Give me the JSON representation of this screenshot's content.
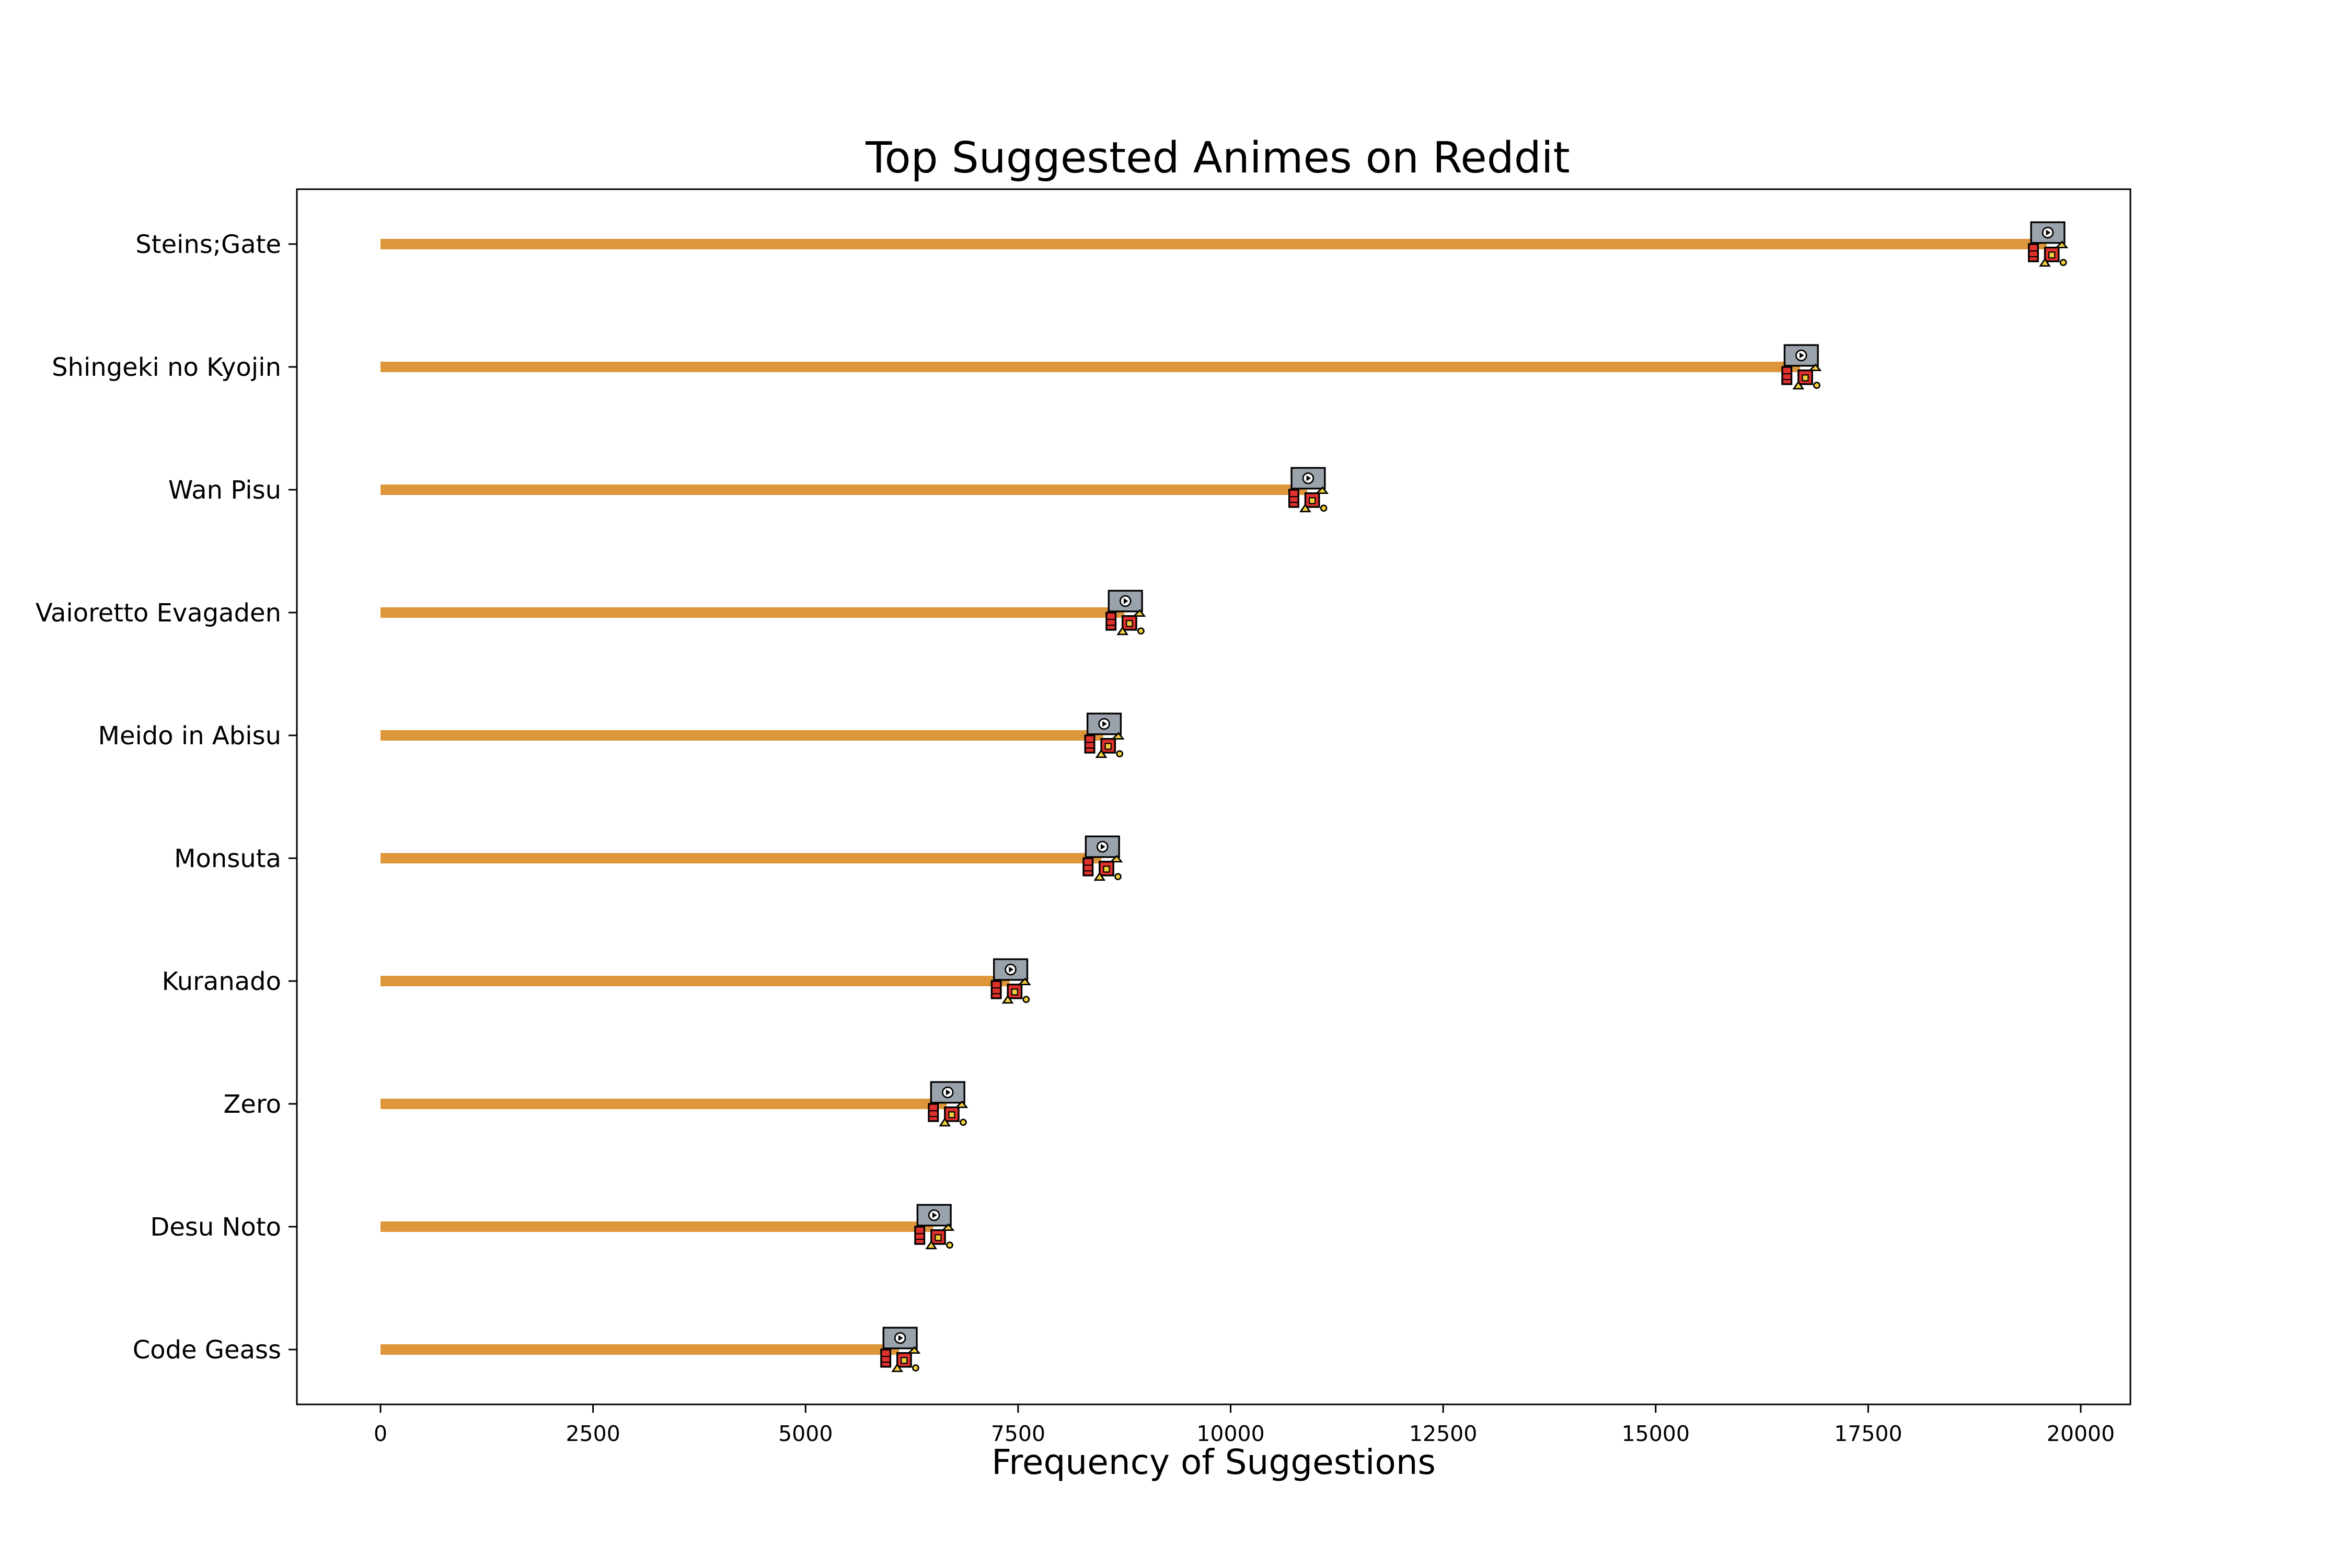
{
  "chart_data": {
    "type": "bar",
    "title": "Top Suggested Animes on Reddit",
    "xlabel": "Frequency of Suggestions",
    "ylabel": "",
    "xlim": [
      -1000,
      20600
    ],
    "x_ticks": [
      0,
      2500,
      5000,
      7500,
      10000,
      12500,
      15000,
      17500,
      20000
    ],
    "x_tick_labels": [
      "0",
      "2500",
      "5000",
      "7500",
      "10000",
      "12500",
      "15000",
      "17500",
      "20000"
    ],
    "orientation": "horizontal",
    "marker": "tv-anime-icon",
    "grid": false,
    "colors": {
      "stem": "#dd963a",
      "screen": "#9aa3ab",
      "red": "#e0312d",
      "yellow": "#f2d13d"
    },
    "categories": [
      "Steins;Gate",
      "Shingeki no Kyojin",
      "Wan Pisu",
      "Vaioretto Evagaden",
      "Meido in Abisu",
      "Monsuta",
      "Kuranado",
      "Zero",
      "Desu Noto",
      "Code Geass"
    ],
    "values": [
      19600,
      16700,
      10900,
      8750,
      8500,
      8480,
      7400,
      6660,
      6500,
      6100
    ]
  }
}
